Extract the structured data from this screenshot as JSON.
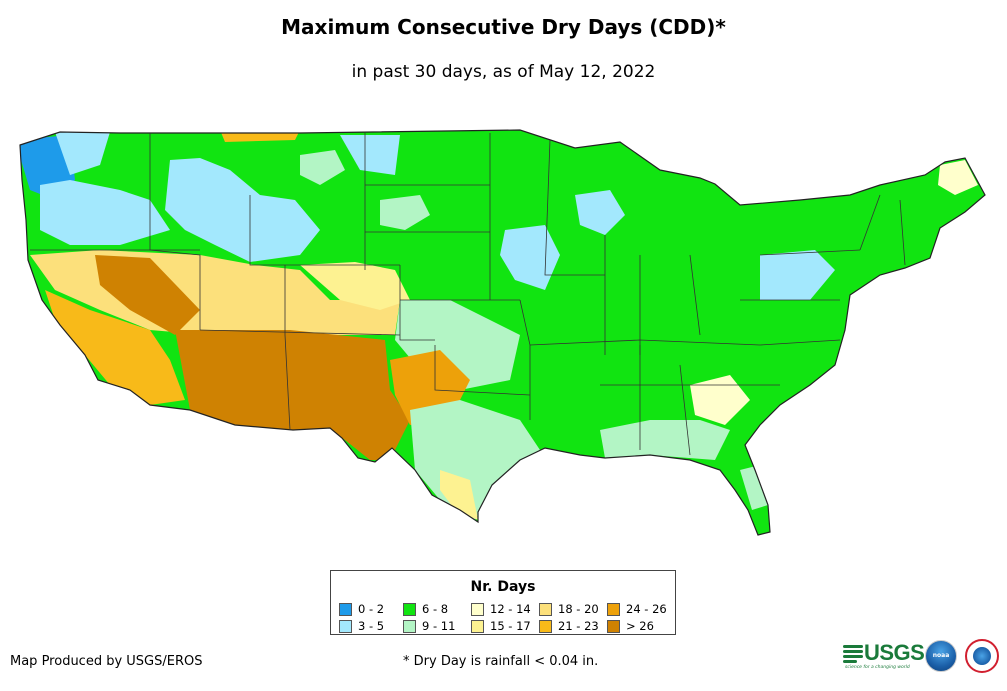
{
  "title": "Maximum Consecutive Dry Days (CDD)*",
  "subtitle": "in past 30 days, as of May 12, 2022",
  "legend": {
    "title": "Nr. Days",
    "items": [
      {
        "label": "0 - 2",
        "color": "#1e9bea"
      },
      {
        "label": "3 - 5",
        "color": "#a3e8fd"
      },
      {
        "label": "6 - 8",
        "color": "#11e411"
      },
      {
        "label": "9 - 11",
        "color": "#b3f5c5"
      },
      {
        "label": "12 - 14",
        "color": "#ffffcc"
      },
      {
        "label": "15 - 17",
        "color": "#fdf291"
      },
      {
        "label": "18 - 20",
        "color": "#fce07b"
      },
      {
        "label": "21 - 23",
        "color": "#f8ba19"
      },
      {
        "label": "24 - 26",
        "color": "#eda10a"
      },
      {
        "label": "> 26",
        "color": "#cf8202"
      }
    ]
  },
  "footer": {
    "producer": "Map Produced by USGS/EROS",
    "note": "* Dry Day is rainfall < 0.04 in."
  },
  "logos": {
    "usgs": "USGS",
    "usgs_tagline": "science for a changing world",
    "noaa": "noaa"
  },
  "map": {
    "region": "Contiguous United States",
    "features": [
      {
        "name": "pacific-northwest",
        "category": "0 - 2"
      },
      {
        "name": "northern-rockies",
        "category": "3 - 5"
      },
      {
        "name": "great-plains",
        "category": "6 - 8"
      },
      {
        "name": "great-basin",
        "category": "18 - 20"
      },
      {
        "name": "california",
        "category": "21 - 23"
      },
      {
        "name": "southwest-desert",
        "category": "> 26"
      },
      {
        "name": "texas",
        "category": "9 - 11"
      },
      {
        "name": "midwest",
        "category": "6 - 8"
      },
      {
        "name": "southeast",
        "category": "6 - 8"
      },
      {
        "name": "northeast",
        "category": "6 - 8"
      }
    ]
  }
}
